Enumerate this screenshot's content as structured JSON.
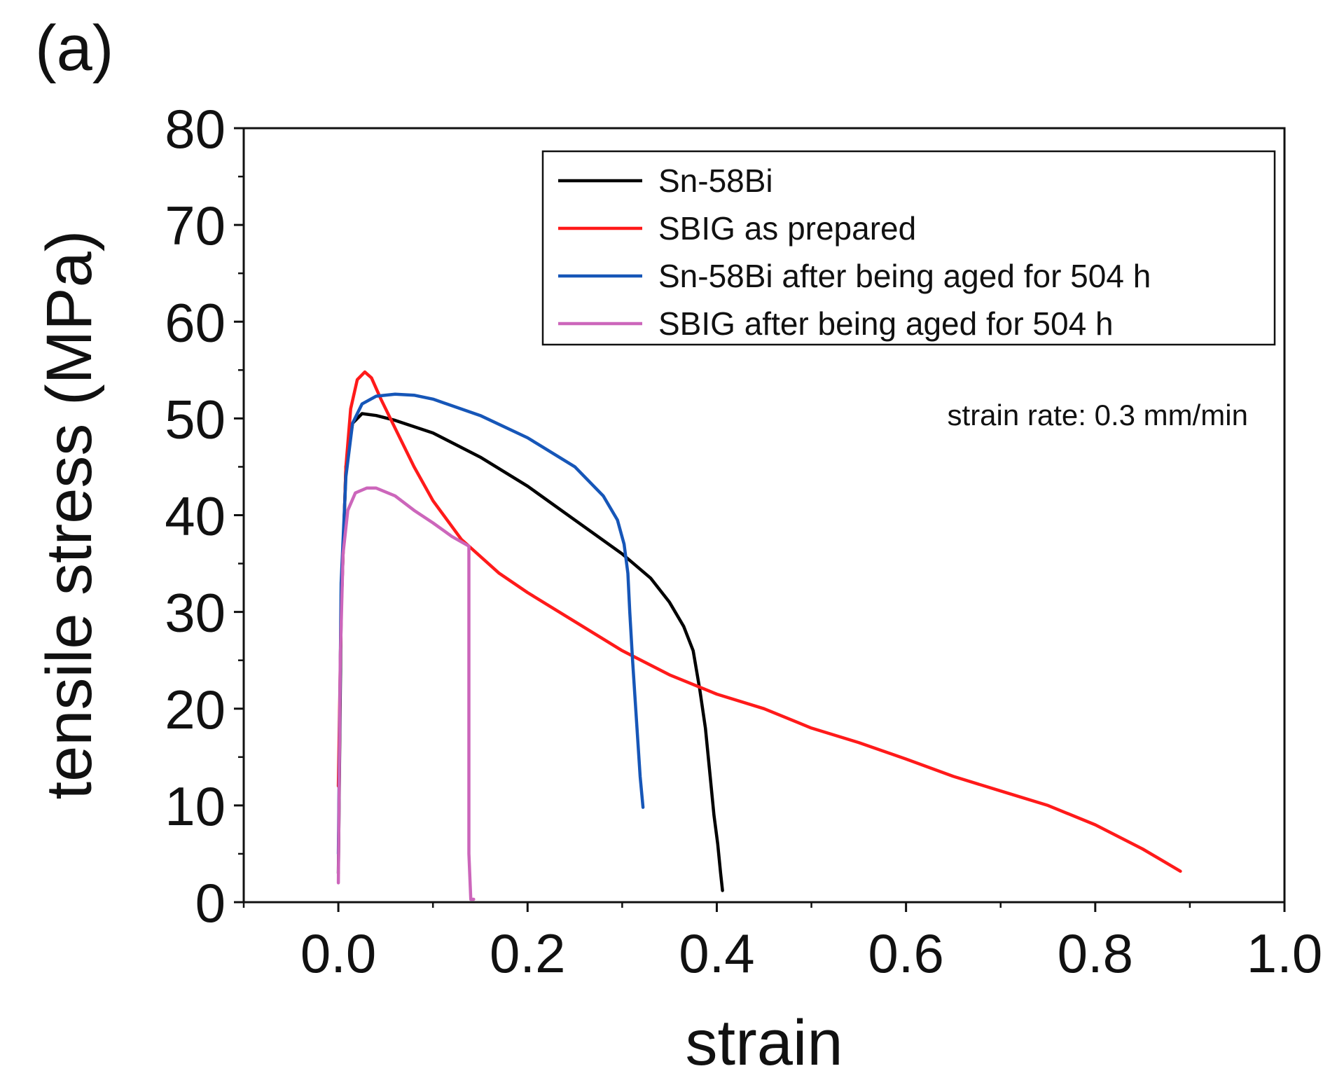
{
  "panel_label": "(a)",
  "chart_data": {
    "type": "line",
    "title": "",
    "xlabel": "strain",
    "ylabel": "tensile stress (MPa)",
    "xlim": [
      -0.1,
      1.0
    ],
    "ylim": [
      0,
      80
    ],
    "xticks": [
      0.0,
      0.2,
      0.4,
      0.6,
      0.8,
      1.0
    ],
    "xtick_labels": [
      "0.0",
      "0.2",
      "0.4",
      "0.6",
      "0.8",
      "1.0"
    ],
    "yticks": [
      0,
      10,
      20,
      30,
      40,
      50,
      60,
      70,
      80
    ],
    "ytick_labels": [
      "0",
      "10",
      "20",
      "30",
      "40",
      "50",
      "60",
      "70",
      "80"
    ],
    "grid": false,
    "legend_position": "top-right",
    "annotation": "strain rate: 0.3 mm/min",
    "series": [
      {
        "name": "Sn-58Bi",
        "color": "#000000",
        "x": [
          0.0,
          0.003,
          0.008,
          0.015,
          0.025,
          0.04,
          0.06,
          0.1,
          0.15,
          0.2,
          0.25,
          0.3,
          0.33,
          0.35,
          0.365,
          0.375,
          0.382,
          0.388,
          0.393,
          0.397,
          0.401,
          0.404,
          0.406
        ],
        "y": [
          3,
          30,
          45,
          49.5,
          50.5,
          50.3,
          49.8,
          48.5,
          46,
          43,
          39.5,
          36,
          33.5,
          31,
          28.5,
          26,
          22,
          18,
          13,
          9,
          6,
          3,
          1.2
        ]
      },
      {
        "name": "SBIG as prepared",
        "color": "#ff1a1a",
        "x": [
          0.0,
          0.003,
          0.008,
          0.013,
          0.02,
          0.028,
          0.035,
          0.045,
          0.06,
          0.08,
          0.1,
          0.13,
          0.17,
          0.2,
          0.25,
          0.3,
          0.35,
          0.4,
          0.45,
          0.5,
          0.55,
          0.6,
          0.65,
          0.7,
          0.75,
          0.8,
          0.85,
          0.89
        ],
        "y": [
          12,
          30,
          45,
          51,
          54,
          54.8,
          54.2,
          52,
          49,
          45,
          41.5,
          37.5,
          34,
          32,
          29,
          26,
          23.5,
          21.5,
          20,
          18,
          16.5,
          14.8,
          13,
          11.5,
          10,
          8,
          5.5,
          3.2
        ]
      },
      {
        "name": "Sn-58Bi after being aged for 504 h",
        "color": "#1656b8",
        "x": [
          0.0,
          0.003,
          0.008,
          0.015,
          0.025,
          0.04,
          0.06,
          0.08,
          0.1,
          0.15,
          0.2,
          0.25,
          0.28,
          0.295,
          0.302,
          0.306,
          0.308,
          0.311,
          0.315,
          0.319,
          0.322
        ],
        "y": [
          5,
          33,
          44,
          49.5,
          51.5,
          52.3,
          52.5,
          52.4,
          52,
          50.3,
          48,
          45,
          42,
          39.5,
          37,
          34,
          30,
          25,
          19,
          13,
          9.8
        ]
      },
      {
        "name": "SBIG after being aged for 504 h",
        "color": "#cc66bb",
        "x": [
          0.0,
          0.002,
          0.005,
          0.01,
          0.018,
          0.03,
          0.04,
          0.06,
          0.08,
          0.1,
          0.12,
          0.138,
          0.138,
          0.14,
          0.143
        ],
        "y": [
          2,
          25,
          36,
          40.5,
          42.3,
          42.8,
          42.8,
          42,
          40.5,
          39.2,
          37.8,
          36.8,
          5,
          0.3,
          0.3
        ]
      }
    ]
  }
}
